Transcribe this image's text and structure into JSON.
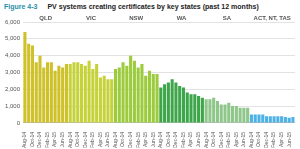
{
  "chart_data": {
    "type": "bar",
    "subtitle": "Figure 4-3",
    "title": "PV systems creating certificates by key states (past 12 months)",
    "categories": [
      "Aug-14",
      null,
      "Oct-14",
      null,
      "Dec-14",
      null,
      "Feb-15",
      null,
      "Apr-15",
      null,
      "Jun-15",
      null,
      "Aug-14",
      null,
      "Oct-14",
      null,
      "Dec-14",
      null,
      "Feb-15",
      null,
      "Apr-15",
      null,
      "Jun-15",
      null,
      "Aug-14",
      null,
      "Oct-14",
      null,
      "Dec-14",
      null,
      "Feb-15",
      null,
      "Apr-15",
      null,
      "Jun-15",
      null,
      "Aug-14",
      null,
      "Oct-14",
      null,
      "Dec-14",
      null,
      "Feb-15",
      null,
      "Apr-15",
      null,
      "Jun-15",
      null,
      "Aug-14",
      null,
      "Oct-14",
      null,
      "Dec-14",
      null,
      "Feb-15",
      null,
      "Apr-15",
      null,
      "Jun-15",
      null,
      "Aug-14",
      null,
      "Oct-14",
      null,
      "Dec-14",
      null,
      "Feb-15",
      null,
      "Apr-15",
      null,
      "Jun-15",
      null
    ],
    "series": [
      {
        "name": "QLD",
        "color": "#cfc12a",
        "values": [
          5400,
          4700,
          4600,
          3600,
          4000,
          3300,
          3600,
          3600,
          3100,
          3400,
          3300,
          3500,
          null,
          null,
          null,
          null,
          null,
          null,
          null,
          null,
          null,
          null,
          null,
          null,
          null,
          null,
          null,
          null,
          null,
          null,
          null,
          null,
          null,
          null,
          null,
          null,
          null,
          null,
          null,
          null,
          null,
          null,
          null,
          null,
          null,
          null,
          null,
          null,
          null,
          null,
          null,
          null,
          null,
          null,
          null,
          null,
          null,
          null,
          null,
          null,
          null,
          null,
          null,
          null,
          null,
          null,
          null,
          null,
          null,
          null,
          null,
          null
        ]
      },
      {
        "name": "VIC",
        "color": "#c6d23a",
        "values": [
          null,
          null,
          null,
          null,
          null,
          null,
          null,
          null,
          null,
          null,
          null,
          null,
          3500,
          3600,
          3600,
          3500,
          3400,
          3700,
          3200,
          3500,
          2700,
          2800,
          2600,
          2600,
          null,
          null,
          null,
          null,
          null,
          null,
          null,
          null,
          null,
          null,
          null,
          null,
          null,
          null,
          null,
          null,
          null,
          null,
          null,
          null,
          null,
          null,
          null,
          null,
          null,
          null,
          null,
          null,
          null,
          null,
          null,
          null,
          null,
          null,
          null,
          null,
          null,
          null,
          null,
          null,
          null,
          null,
          null,
          null,
          null,
          null,
          null,
          null
        ]
      },
      {
        "name": "NSW",
        "color": "#9ccb3e",
        "values": [
          null,
          null,
          null,
          null,
          null,
          null,
          null,
          null,
          null,
          null,
          null,
          null,
          null,
          null,
          null,
          null,
          null,
          null,
          null,
          null,
          null,
          null,
          null,
          null,
          3200,
          3300,
          3600,
          3400,
          4000,
          3700,
          3300,
          3500,
          2800,
          3100,
          2900,
          2900,
          null,
          null,
          null,
          null,
          null,
          null,
          null,
          null,
          null,
          null,
          null,
          null,
          null,
          null,
          null,
          null,
          null,
          null,
          null,
          null,
          null,
          null,
          null,
          null,
          null,
          null,
          null,
          null,
          null,
          null,
          null,
          null,
          null,
          null,
          null,
          null
        ]
      },
      {
        "name": "WA",
        "color": "#3ea64a",
        "values": [
          null,
          null,
          null,
          null,
          null,
          null,
          null,
          null,
          null,
          null,
          null,
          null,
          null,
          null,
          null,
          null,
          null,
          null,
          null,
          null,
          null,
          null,
          null,
          null,
          null,
          null,
          null,
          null,
          null,
          null,
          null,
          null,
          null,
          null,
          null,
          null,
          2100,
          2300,
          2400,
          2600,
          2400,
          2200,
          2100,
          1800,
          1700,
          1700,
          1600,
          1500,
          null,
          null,
          null,
          null,
          null,
          null,
          null,
          null,
          null,
          null,
          null,
          null,
          null,
          null,
          null,
          null,
          null,
          null,
          null,
          null,
          null,
          null,
          null,
          null
        ]
      },
      {
        "name": "SA",
        "color": "#8fc68a",
        "values": [
          null,
          null,
          null,
          null,
          null,
          null,
          null,
          null,
          null,
          null,
          null,
          null,
          null,
          null,
          null,
          null,
          null,
          null,
          null,
          null,
          null,
          null,
          null,
          null,
          null,
          null,
          null,
          null,
          null,
          null,
          null,
          null,
          null,
          null,
          null,
          null,
          null,
          null,
          null,
          null,
          null,
          null,
          null,
          null,
          null,
          null,
          null,
          null,
          1400,
          1400,
          1500,
          1300,
          1100,
          1100,
          1200,
          1000,
          1000,
          900,
          900,
          900,
          null,
          null,
          null,
          null,
          null,
          null,
          null,
          null,
          null,
          null,
          null,
          null
        ]
      },
      {
        "name": "ACT, NT, TAS",
        "color": "#4fb2e6",
        "values": [
          null,
          null,
          null,
          null,
          null,
          null,
          null,
          null,
          null,
          null,
          null,
          null,
          null,
          null,
          null,
          null,
          null,
          null,
          null,
          null,
          null,
          null,
          null,
          null,
          null,
          null,
          null,
          null,
          null,
          null,
          null,
          null,
          null,
          null,
          null,
          null,
          null,
          null,
          null,
          null,
          null,
          null,
          null,
          null,
          null,
          null,
          null,
          null,
          null,
          null,
          null,
          null,
          null,
          null,
          null,
          null,
          null,
          null,
          null,
          null,
          500,
          500,
          500,
          500,
          400,
          400,
          400,
          400,
          400,
          350,
          300,
          350
        ]
      }
    ],
    "ylim": [
      0,
      6000
    ],
    "yticks": [
      0,
      {
        "value": 1000,
        "label": "1,000"
      },
      {
        "value": 2000,
        "label": "2,000"
      },
      {
        "value": 3000,
        "label": "3,000"
      },
      {
        "value": 4000,
        "label": "4,000"
      },
      {
        "value": 5000,
        "label": "5,000"
      },
      {
        "value": 6000,
        "label": "6,000"
      }
    ],
    "grid": true,
    "legend": false
  }
}
